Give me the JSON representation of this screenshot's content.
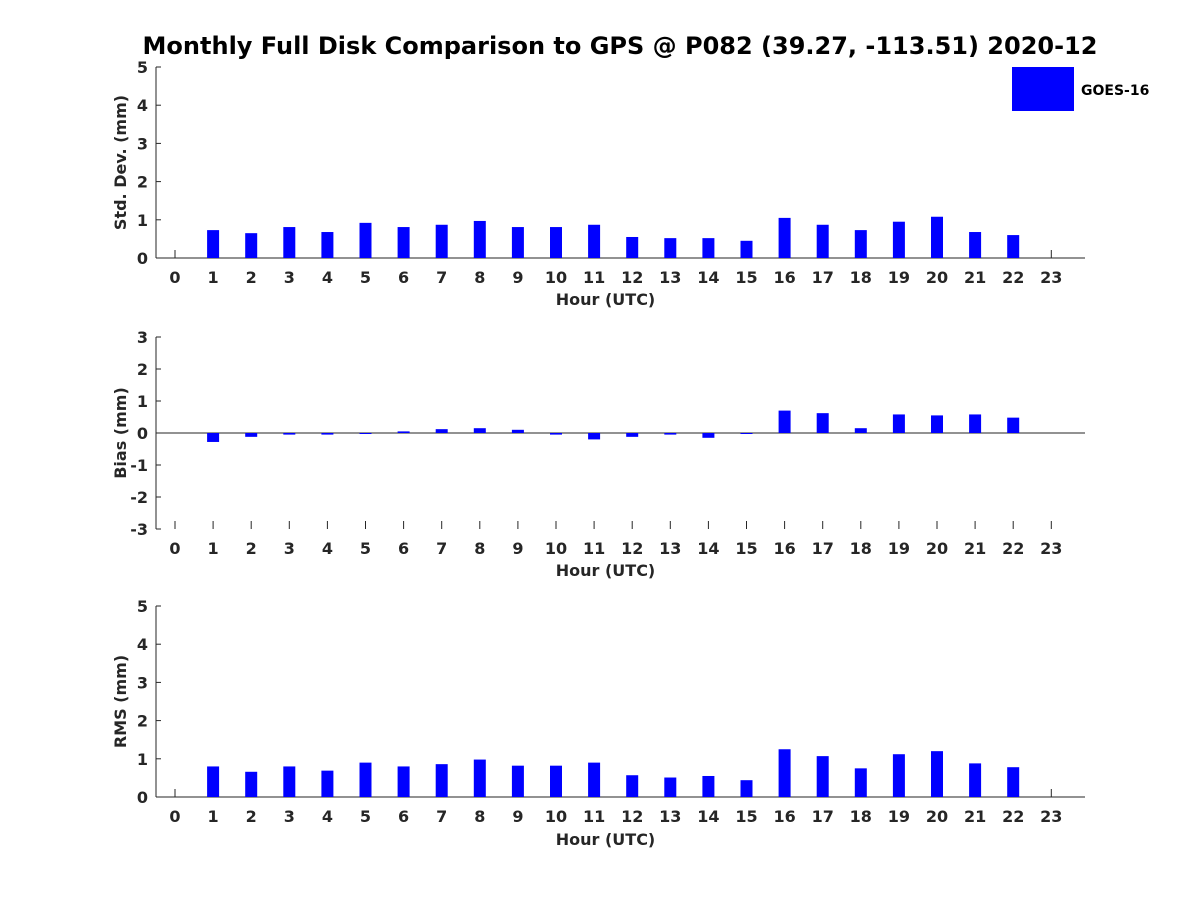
{
  "title": "Monthly Full Disk Comparison to GPS @ P082 (39.27, -113.51) 2020-12",
  "legend": {
    "label": "GOES-16",
    "color": "#0000ff"
  },
  "chart_data": [
    {
      "type": "bar",
      "title": "",
      "xlabel": "Hour (UTC)",
      "ylabel": "Std. Dev. (mm)",
      "ylim": [
        0,
        5
      ],
      "yticks": [
        "0",
        "1",
        "2",
        "3",
        "4",
        "5"
      ],
      "categories": [
        "0",
        "1",
        "2",
        "3",
        "4",
        "5",
        "6",
        "7",
        "8",
        "9",
        "10",
        "11",
        "12",
        "13",
        "14",
        "15",
        "16",
        "17",
        "18",
        "19",
        "20",
        "21",
        "22",
        "23"
      ],
      "series": [
        {
          "name": "GOES-16",
          "color": "#0000ff",
          "values": [
            null,
            0.73,
            0.65,
            0.81,
            0.68,
            0.92,
            0.81,
            0.87,
            0.97,
            0.81,
            0.81,
            0.87,
            0.55,
            0.52,
            0.52,
            0.45,
            1.05,
            0.87,
            0.73,
            0.95,
            1.08,
            0.68,
            0.6,
            null
          ]
        }
      ]
    },
    {
      "type": "bar",
      "title": "",
      "xlabel": "Hour (UTC)",
      "ylabel": "Bias (mm)",
      "ylim": [
        -3,
        3
      ],
      "yticks": [
        "-3",
        "-2",
        "-1",
        "0",
        "1",
        "2",
        "3"
      ],
      "categories": [
        "0",
        "1",
        "2",
        "3",
        "4",
        "5",
        "6",
        "7",
        "8",
        "9",
        "10",
        "11",
        "12",
        "13",
        "14",
        "15",
        "16",
        "17",
        "18",
        "19",
        "20",
        "21",
        "22",
        "23"
      ],
      "series": [
        {
          "name": "GOES-16",
          "color": "#0000ff",
          "values": [
            null,
            -0.28,
            -0.12,
            -0.05,
            -0.05,
            -0.02,
            0.05,
            0.12,
            0.15,
            0.1,
            -0.05,
            -0.2,
            -0.12,
            -0.05,
            -0.15,
            0.0,
            0.7,
            0.62,
            0.15,
            0.58,
            0.55,
            0.58,
            0.48,
            null
          ]
        }
      ]
    },
    {
      "type": "bar",
      "title": "",
      "xlabel": "Hour (UTC)",
      "ylabel": "RMS (mm)",
      "ylim": [
        0,
        5
      ],
      "yticks": [
        "0",
        "1",
        "2",
        "3",
        "4",
        "5"
      ],
      "categories": [
        "0",
        "1",
        "2",
        "3",
        "4",
        "5",
        "6",
        "7",
        "8",
        "9",
        "10",
        "11",
        "12",
        "13",
        "14",
        "15",
        "16",
        "17",
        "18",
        "19",
        "20",
        "21",
        "22",
        "23"
      ],
      "series": [
        {
          "name": "GOES-16",
          "color": "#0000ff",
          "values": [
            null,
            0.8,
            0.66,
            0.8,
            0.69,
            0.9,
            0.8,
            0.86,
            0.98,
            0.82,
            0.82,
            0.9,
            0.57,
            0.51,
            0.55,
            0.44,
            1.25,
            1.07,
            0.75,
            1.12,
            1.2,
            0.88,
            0.78,
            null
          ]
        }
      ]
    }
  ]
}
